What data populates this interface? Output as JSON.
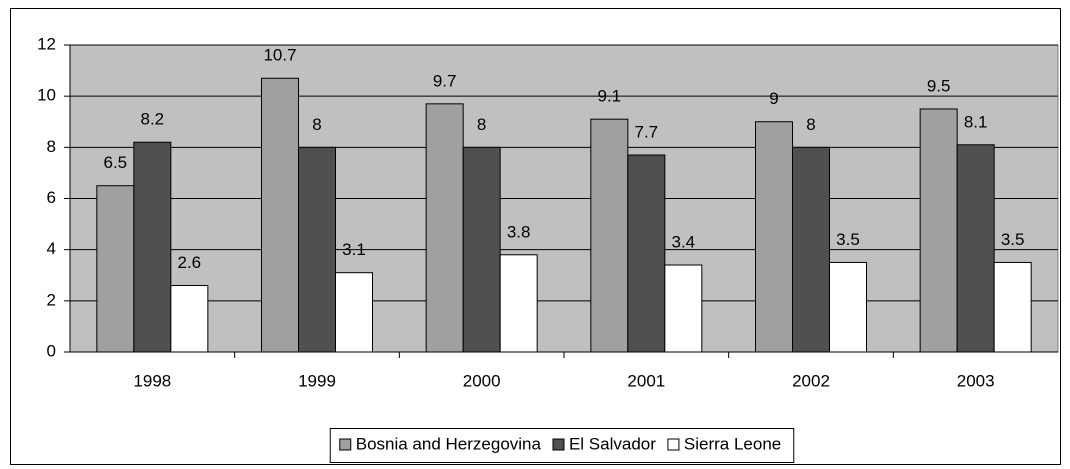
{
  "chart_data": {
    "type": "bar",
    "categories": [
      "1998",
      "1999",
      "2000",
      "2001",
      "2002",
      "2003"
    ],
    "series": [
      {
        "name": "Bosnia and Herzegovina",
        "color": "#a0a0a0",
        "values": [
          6.5,
          10.7,
          9.7,
          9.1,
          9,
          9.5
        ]
      },
      {
        "name": "El Salvador",
        "color": "#505050",
        "values": [
          8.2,
          8,
          8,
          7.7,
          8,
          8.1
        ]
      },
      {
        "name": "Sierra Leone",
        "color": "#ffffff",
        "values": [
          2.6,
          3.1,
          3.8,
          3.4,
          3.5,
          3.5
        ]
      }
    ],
    "ylim": [
      0,
      12
    ],
    "yticks": [
      0,
      2,
      4,
      6,
      8,
      10,
      12
    ],
    "grid": true,
    "legend": "bottom"
  }
}
